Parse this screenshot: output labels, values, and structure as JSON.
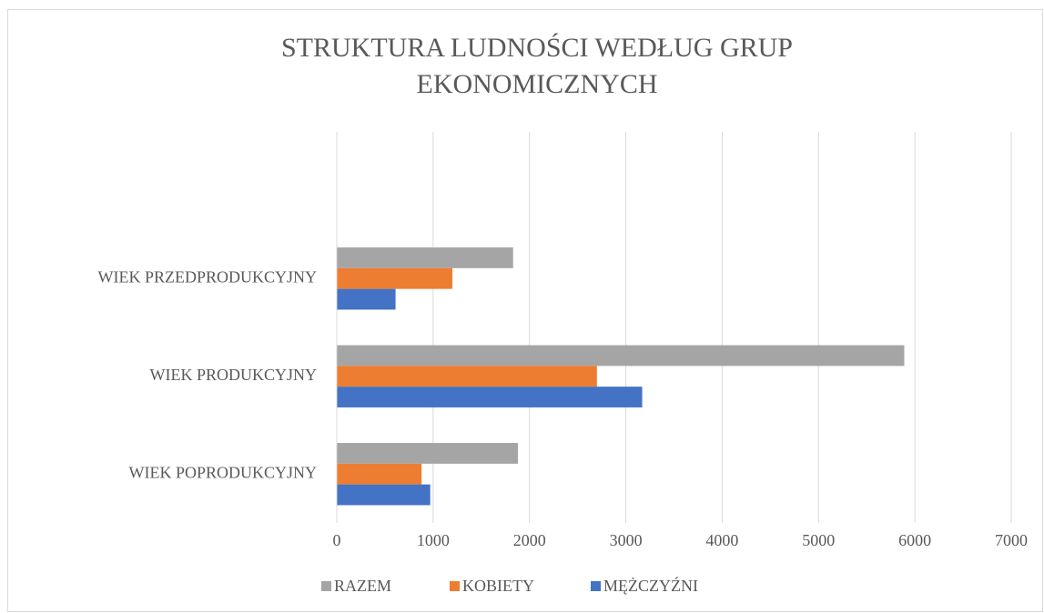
{
  "chart_data": {
    "type": "bar",
    "orientation": "horizontal",
    "title": "STRUKTURA  LUDNOŚCI  WEDŁUG  GRUP EKONOMICZNYCH",
    "categories": [
      "WIEK POPRODUKCYJNY",
      "WIEK PRODUKCYJNY",
      "WIEK PRZEDPRODUKCYJNY",
      null
    ],
    "series": [
      {
        "name": "RAZEM",
        "color": "#a5a5a5",
        "values": [
          1880,
          5890,
          1830,
          null
        ]
      },
      {
        "name": "KOBIETY",
        "color": "#ed7d31",
        "values": [
          880,
          2700,
          1200,
          null
        ]
      },
      {
        "name": "MĘŻCZYŹNI",
        "color": "#4472c4",
        "values": [
          970,
          3170,
          610,
          null
        ]
      }
    ],
    "xlim": [
      0,
      7000
    ],
    "xticks": [
      0,
      1000,
      2000,
      3000,
      4000,
      5000,
      6000,
      7000
    ],
    "grid": true,
    "legend": "bottom"
  }
}
